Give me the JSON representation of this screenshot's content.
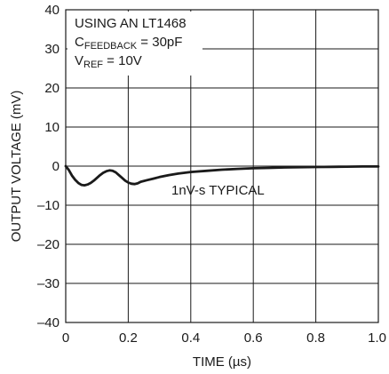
{
  "chart_data": {
    "type": "line",
    "xlabel": "TIME (µs)",
    "ylabel": "OUTPUT VOLTAGE (mV)",
    "xlim": [
      0,
      1.0
    ],
    "ylim": [
      -40,
      40
    ],
    "x_ticks": [
      0,
      0.2,
      0.4,
      0.6,
      0.8,
      1.0
    ],
    "x_tick_labels": [
      "0",
      "0.2",
      "0.4",
      "0.6",
      "0.8",
      "1.0"
    ],
    "y_ticks": [
      -40,
      -30,
      -20,
      -10,
      0,
      10,
      20,
      30,
      40
    ],
    "y_tick_labels": [
      "–40",
      "–30",
      "–20",
      "–10",
      "0",
      "10",
      "20",
      "30",
      "40"
    ],
    "grid": true,
    "legend_box": {
      "line1": "USING AN LT1468",
      "line2_main": "C",
      "line2_sub": "FEEDBACK",
      "line2_rest": " = 30pF",
      "line3_main": "V",
      "line3_sub": "REF",
      "line3_rest": " = 10V"
    },
    "annotation": "1nV-s TYPICAL",
    "series": [
      {
        "x": [
          0,
          0.01,
          0.02,
          0.03,
          0.04,
          0.05,
          0.06,
          0.07,
          0.08,
          0.09,
          0.1,
          0.11,
          0.12,
          0.13,
          0.14,
          0.15,
          0.16,
          0.17,
          0.18,
          0.19,
          0.2,
          0.21,
          0.22,
          0.23,
          0.24,
          0.26,
          0.28,
          0.3,
          0.33,
          0.36,
          0.4,
          0.45,
          0.5,
          0.55,
          0.6,
          0.65,
          0.7,
          0.75,
          0.8,
          0.85,
          0.9,
          0.95,
          1.0
        ],
        "y": [
          0,
          -1.0,
          -2.4,
          -3.5,
          -4.3,
          -4.8,
          -4.9,
          -4.7,
          -4.3,
          -3.7,
          -3.0,
          -2.3,
          -1.7,
          -1.3,
          -1.1,
          -1.2,
          -1.6,
          -2.3,
          -3.0,
          -3.7,
          -4.2,
          -4.5,
          -4.6,
          -4.4,
          -4.0,
          -3.6,
          -3.2,
          -2.8,
          -2.3,
          -1.9,
          -1.5,
          -1.2,
          -0.9,
          -0.7,
          -0.55,
          -0.45,
          -0.35,
          -0.28,
          -0.22,
          -0.18,
          -0.14,
          -0.1,
          -0.1
        ]
      }
    ]
  }
}
